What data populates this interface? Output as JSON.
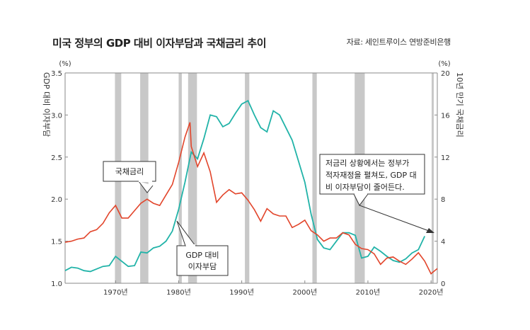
{
  "title": "미국 정부의 GDP 대비 이자부담과 국채금리 추이",
  "source": "자료: 세인트루이스 연방준비은행",
  "chart_data": {
    "type": "line",
    "left_axis": {
      "label": "GDP 대비 이자부담",
      "unit": "(%)",
      "ylim": [
        1.0,
        3.5
      ],
      "ticks": [
        "1.0",
        "1.5",
        "2.0",
        "2.5",
        "3.0",
        "3.5"
      ]
    },
    "right_axis": {
      "label": "10년 만기 국채금리",
      "unit": "(%)",
      "ylim": [
        0,
        20
      ],
      "ticks": [
        "0",
        "4",
        "8",
        "12",
        "16",
        "20"
      ]
    },
    "x_axis": {
      "xlim": [
        1962,
        2021
      ],
      "ticks": [
        "1970년",
        "1980년",
        "1990년",
        "2000년",
        "2010년",
        "2020년"
      ],
      "tick_values": [
        1970,
        1980,
        1990,
        2000,
        2010,
        2020
      ]
    },
    "recessions": [
      [
        1969.9,
        1970.9
      ],
      [
        1973.9,
        1975.2
      ],
      [
        1980.0,
        1980.5
      ],
      [
        1981.5,
        1982.9
      ],
      [
        1990.5,
        1991.2
      ],
      [
        2001.2,
        2001.9
      ],
      [
        2007.9,
        2009.5
      ],
      [
        2020.1,
        2020.4
      ]
    ],
    "series": [
      {
        "name": "국채금리",
        "axis": "right",
        "color": "#e2452b",
        "x": [
          1962,
          1963,
          1964,
          1965,
          1966,
          1967,
          1968,
          1969,
          1970,
          1971,
          1972,
          1973,
          1974,
          1975,
          1976,
          1977,
          1978,
          1979,
          1980,
          1981,
          1981.8,
          1982,
          1983,
          1984,
          1985,
          1986,
          1987,
          1988,
          1989,
          1990,
          1991,
          1992,
          1993,
          1994,
          1995,
          1996,
          1997,
          1998,
          1999,
          2000,
          2001,
          2002,
          2003,
          2004,
          2005,
          2006,
          2007,
          2008,
          2009,
          2010,
          2011,
          2012,
          2013,
          2014,
          2015,
          2016,
          2017,
          2018,
          2019,
          2020,
          2021
        ],
        "values": [
          3.9,
          4.0,
          4.2,
          4.3,
          4.9,
          5.1,
          5.7,
          6.7,
          7.4,
          6.2,
          6.2,
          6.9,
          7.6,
          8.0,
          7.6,
          7.4,
          8.4,
          9.4,
          11.5,
          13.9,
          15.3,
          13.0,
          11.1,
          12.4,
          10.6,
          7.7,
          8.4,
          8.9,
          8.5,
          8.6,
          7.9,
          7.0,
          5.9,
          7.1,
          6.6,
          6.4,
          6.4,
          5.3,
          5.6,
          6.0,
          5.0,
          4.6,
          4.0,
          4.3,
          4.3,
          4.8,
          4.6,
          3.7,
          3.3,
          3.2,
          2.8,
          1.8,
          2.4,
          2.5,
          2.1,
          1.8,
          2.3,
          2.9,
          2.1,
          0.9,
          1.4
        ]
      },
      {
        "name": "GDP 대비 이자부담",
        "axis": "left",
        "color": "#21b3a8",
        "x": [
          1962,
          1963,
          1964,
          1965,
          1966,
          1967,
          1968,
          1969,
          1970,
          1971,
          1972,
          1973,
          1974,
          1975,
          1976,
          1977,
          1978,
          1979,
          1980,
          1981,
          1982,
          1983,
          1984,
          1985,
          1986,
          1987,
          1988,
          1989,
          1990,
          1991,
          1992,
          1993,
          1994,
          1995,
          1996,
          1997,
          1998,
          1999,
          2000,
          2001,
          2002,
          2003,
          2004,
          2005,
          2006,
          2007,
          2008,
          2009,
          2010,
          2011,
          2012,
          2013,
          2014,
          2015,
          2016,
          2017,
          2018,
          2019
        ],
        "values": [
          1.15,
          1.19,
          1.18,
          1.15,
          1.14,
          1.17,
          1.2,
          1.21,
          1.32,
          1.26,
          1.2,
          1.21,
          1.37,
          1.36,
          1.42,
          1.44,
          1.5,
          1.62,
          1.88,
          2.2,
          2.56,
          2.48,
          2.72,
          3.0,
          2.98,
          2.86,
          2.9,
          3.02,
          3.13,
          3.17,
          3.0,
          2.85,
          2.8,
          3.05,
          3.0,
          2.85,
          2.7,
          2.45,
          2.2,
          1.82,
          1.52,
          1.42,
          1.4,
          1.5,
          1.6,
          1.6,
          1.57,
          1.3,
          1.32,
          1.43,
          1.38,
          1.32,
          1.27,
          1.25,
          1.29,
          1.36,
          1.4,
          1.56
        ]
      }
    ],
    "annotations": [
      {
        "text": "국채금리"
      },
      {
        "text": "GDP 대비 이자부담"
      },
      {
        "text": "저금리 상황에서는 정부가 적자재정을 펼쳐도, GDP 대비 이자부담이 줄어든다."
      }
    ]
  },
  "colors": {
    "recession": "#c8c8c8",
    "axis": "#8a8a8a"
  }
}
